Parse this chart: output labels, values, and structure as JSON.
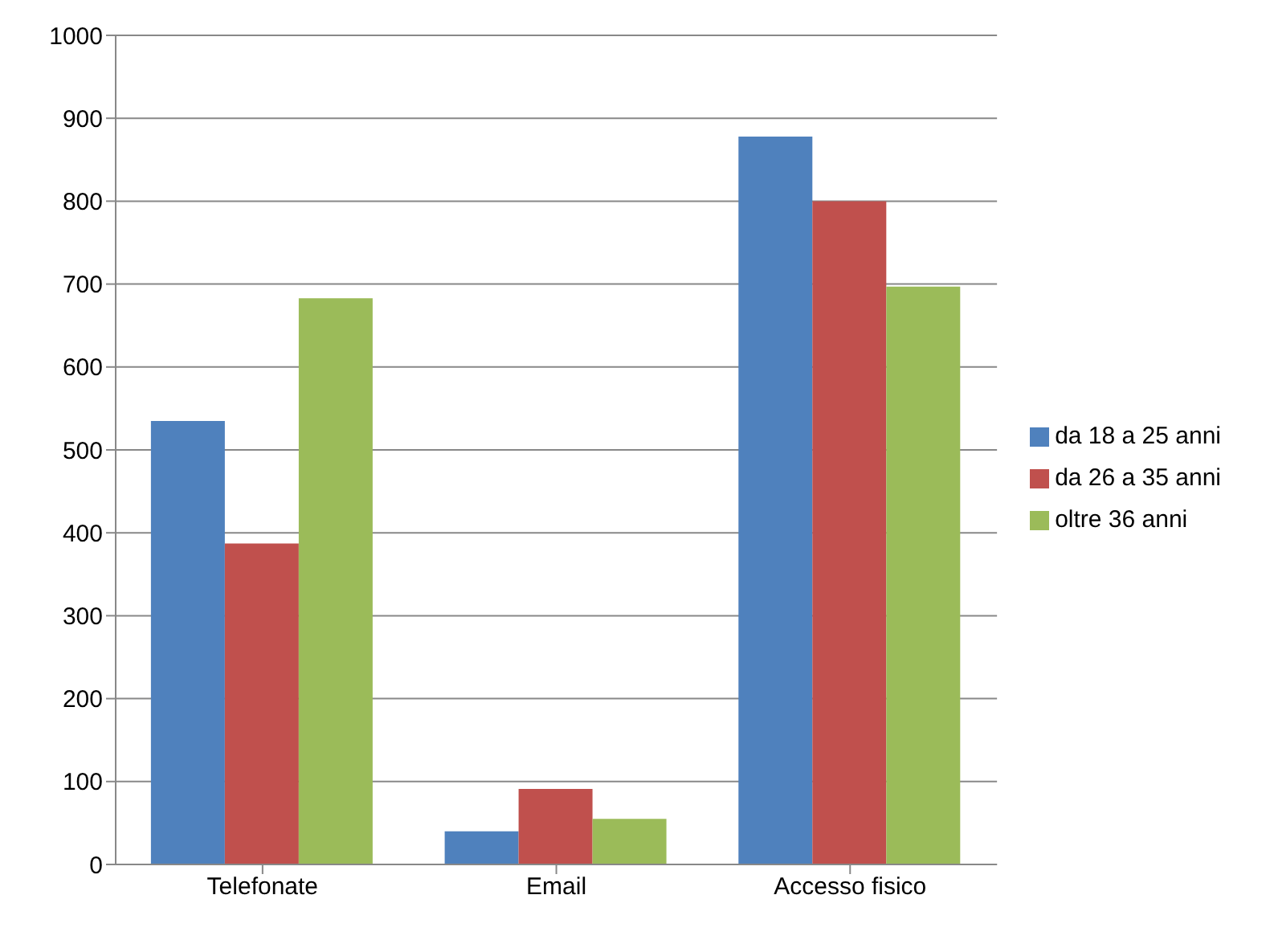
{
  "chart_data": {
    "type": "bar",
    "categories": [
      "Telefonate",
      "Email",
      "Accesso fisico"
    ],
    "series": [
      {
        "name": "da 18 a 25 anni",
        "color": "#4f81bd",
        "values": [
          535,
          40,
          878
        ]
      },
      {
        "name": "da 26 a 35 anni",
        "color": "#c0504d",
        "values": [
          387,
          91,
          800
        ]
      },
      {
        "name": "oltre 36 anni",
        "color": "#9bbb59",
        "values": [
          683,
          55,
          697
        ]
      }
    ],
    "ylim": [
      0,
      1000
    ],
    "yticks": [
      0,
      100,
      200,
      300,
      400,
      500,
      600,
      700,
      800,
      900,
      1000
    ],
    "grid": "y",
    "legend": "right"
  }
}
